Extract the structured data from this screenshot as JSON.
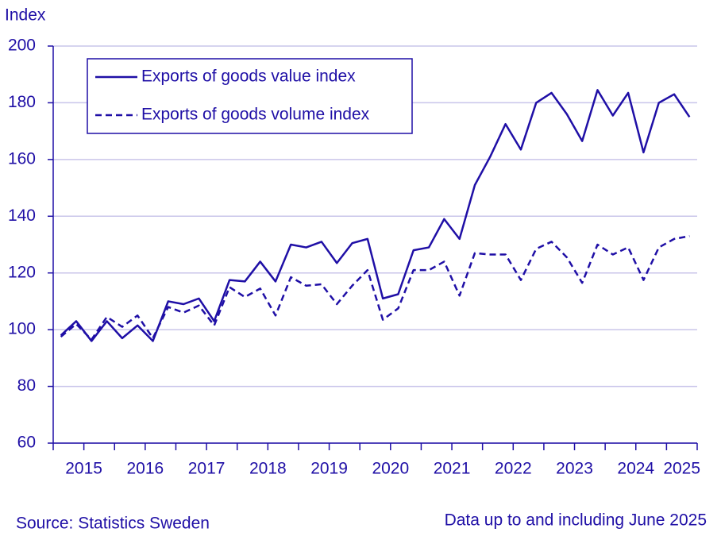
{
  "chart_data": {
    "type": "line",
    "y_label": "Index",
    "source": "Source: Statistics Sweden",
    "note": "Data up to and including June 2025",
    "x": [
      2015.125,
      2015.375,
      2015.625,
      2015.875,
      2016.125,
      2016.375,
      2016.625,
      2016.875,
      2017.125,
      2017.375,
      2017.625,
      2017.875,
      2018.125,
      2018.375,
      2018.625,
      2018.875,
      2019.125,
      2019.375,
      2019.625,
      2019.875,
      2020.125,
      2020.375,
      2020.625,
      2020.875,
      2021.125,
      2021.375,
      2021.625,
      2021.875,
      2022.125,
      2022.375,
      2022.625,
      2022.875,
      2023.125,
      2023.375,
      2023.625,
      2023.875,
      2024.125,
      2024.375,
      2024.625,
      2024.875,
      2025.125,
      2025.375
    ],
    "series": [
      {
        "name": "Exports of goods value index",
        "color": "#1f0fa6",
        "dash": false,
        "values": [
          98,
          103,
          96,
          103,
          97,
          101.5,
          96,
          110,
          109,
          111,
          103,
          117.5,
          117,
          124,
          117,
          130,
          129,
          131,
          123.5,
          130.5,
          132,
          111,
          112.5,
          128,
          129,
          139,
          132,
          151,
          161,
          172.5,
          163.5,
          180,
          183.5,
          176,
          166.5,
          184.5,
          175.5,
          183.5,
          162.5,
          180,
          183,
          175
        ]
      },
      {
        "name": "Exports of goods volume index",
        "color": "#1f0fa6",
        "dash": true,
        "values": [
          97.5,
          102,
          96.5,
          104.5,
          101,
          105,
          97,
          108,
          106,
          108.5,
          101.5,
          115,
          111.5,
          114.5,
          105,
          118.5,
          115.5,
          116,
          109,
          115.5,
          121,
          103.5,
          107.5,
          121,
          121,
          124,
          112,
          127,
          126.5,
          126.5,
          117.5,
          128.5,
          131,
          125.5,
          116.5,
          130,
          126.5,
          129,
          117.5,
          129,
          132,
          133
        ]
      }
    ],
    "xlim": [
      2015,
      2025.5
    ],
    "xticks": [
      {
        "value": 2015.5,
        "label": "2015"
      },
      {
        "value": 2016.5,
        "label": "2016"
      },
      {
        "value": 2017.5,
        "label": "2017"
      },
      {
        "value": 2018.5,
        "label": "2018"
      },
      {
        "value": 2019.5,
        "label": "2019"
      },
      {
        "value": 2020.5,
        "label": "2020"
      },
      {
        "value": 2021.5,
        "label": "2021"
      },
      {
        "value": 2022.5,
        "label": "2022"
      },
      {
        "value": 2023.5,
        "label": "2023"
      },
      {
        "value": 2024.5,
        "label": "2024"
      },
      {
        "value": 2025.25,
        "label": "2025"
      }
    ],
    "xtick_marks": [
      2015,
      2015.5,
      2016,
      2016.5,
      2017,
      2017.5,
      2018,
      2018.5,
      2019,
      2019.5,
      2020,
      2020.5,
      2021,
      2021.5,
      2022,
      2022.5,
      2023,
      2023.5,
      2024,
      2024.5,
      2025,
      2025.5
    ],
    "ylim": [
      60,
      200
    ],
    "yticks": [
      60,
      80,
      100,
      120,
      140,
      160,
      180,
      200
    ],
    "grid": true,
    "legend": "top-left",
    "axis_color": "#1f0fa6",
    "grid_color": "#c9c5ea"
  }
}
